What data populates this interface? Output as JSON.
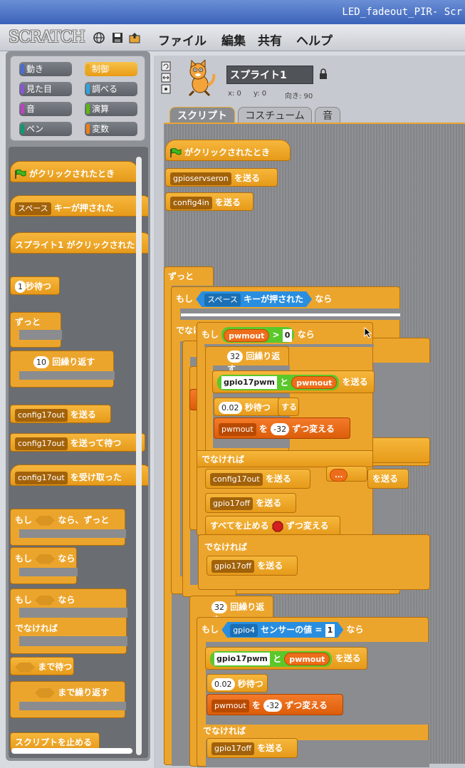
{
  "window": {
    "title": "LED_fadeout_PIR- Scr"
  },
  "menubar": {
    "logo": "SCRATCH",
    "items": [
      "ファイル",
      "編集",
      "共有",
      "ヘルプ"
    ],
    "icons": [
      "globe-icon",
      "save-icon",
      "share-icon"
    ]
  },
  "categories": [
    {
      "label": "動き",
      "color": "#4a6cd4"
    },
    {
      "label": "制御",
      "color": "#e6a822",
      "selected": true
    },
    {
      "label": "見た目",
      "color": "#8a55d7"
    },
    {
      "label": "調べる",
      "color": "#2ca5e2"
    },
    {
      "label": "音",
      "color": "#bb42c3"
    },
    {
      "label": "演算",
      "color": "#5cb712"
    },
    {
      "label": "ペン",
      "color": "#0e9a6c"
    },
    {
      "label": "変数",
      "color": "#ee7d16"
    }
  ],
  "palette": {
    "flag_clicked": "がクリックされたとき",
    "key_drop": "スペース",
    "key_pressed": "キーが押された",
    "sprite_clicked": "スプライト1 がクリックされた",
    "wait_num": "1",
    "wait_label": "秒待つ",
    "forever": "ずっと",
    "repeat_num": "10",
    "repeat_label": "回繰り返す",
    "broadcast_drop": "config17out",
    "broadcast_label": "を送る",
    "broadcast_wait_label": "を送って待つ",
    "receive_label": "を受け取った",
    "if_forever_pre": "もし",
    "if_forever_post": "なら、ずっと",
    "if_label": "もし",
    "if_then": "なら",
    "else_label": "でなければ",
    "wait_until": "まで待つ",
    "repeat_until": "まで繰り返す",
    "stop_script": "スクリプトを止める"
  },
  "sprite": {
    "name": "スプライト1",
    "x_label": "x: 0",
    "y_label": "y: 0",
    "direction_label": "向き: 90"
  },
  "tabs": [
    "スクリプト",
    "コスチューム",
    "音"
  ],
  "script": {
    "hat": "がクリックされたとき",
    "send1_drop": "gpioservseron",
    "send_label": "を送る",
    "send2_drop": "config4in",
    "forever": "ずっと",
    "if": "もし",
    "then": "なら",
    "else": "でなければ",
    "key_drop": "スペース",
    "key_pressed": "キーが押された",
    "pwm_var": "pwmout",
    "gt": ">",
    "zero": "0",
    "eq": "=",
    "one": "1",
    "repeat_num": "32",
    "repeat_label": "回繰り返す",
    "pwm_send_text": "gpio17pwm",
    "and": "と",
    "wait_num": "0.02",
    "wait_label": "秒待つ",
    "change_by": "を",
    "change_num": "-32",
    "change_label": "ずつ変える",
    "config17out": "config17out",
    "gpio17off": "gpio17off",
    "stop_all": "すべてを止める",
    "sensor_drop": "gpio4",
    "sensor_label": "センサーの値",
    "partial_suru": "する",
    "partial_value": "の値",
    "partial_hi": "値"
  }
}
